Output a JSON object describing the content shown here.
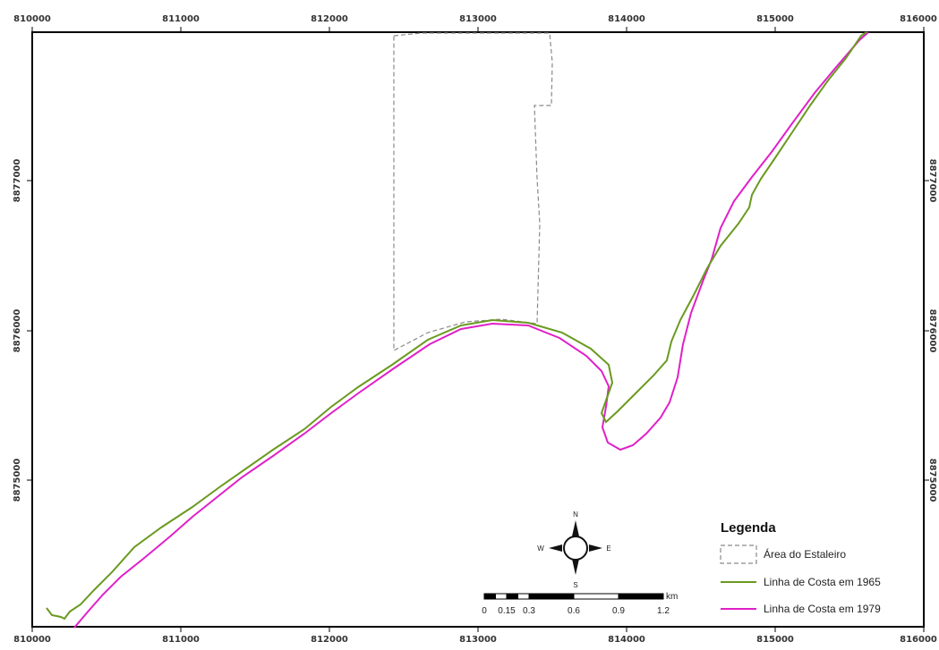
{
  "map": {
    "x_ticks": [
      "810000",
      "811000",
      "812000",
      "813000",
      "814000",
      "815000",
      "816000"
    ],
    "y_ticks": [
      "8877000",
      "8876000",
      "8875000"
    ],
    "x_range": [
      810000,
      816000
    ],
    "colors": {
      "frame": "#000000",
      "coast_1965": "#6a9a1f",
      "coast_1979": "#e020c8",
      "shipyard_outline": "#8a8a8a"
    }
  },
  "legend": {
    "title": "Legenda",
    "items": [
      {
        "label": "Área do Estaleiro",
        "symbol": "dashed-box"
      },
      {
        "label": "Linha de Costa em 1965",
        "symbol": "green-line"
      },
      {
        "label": "Linha de Costa em 1979",
        "symbol": "magenta-line"
      }
    ]
  },
  "compass": {
    "north": "N",
    "south": "S",
    "east": "E",
    "west": "W",
    "icon": "north-arrow-icon"
  },
  "scale_bar": {
    "unit": "km",
    "labels": [
      "0",
      "0.15",
      "0.3",
      "0.6",
      "0.9",
      "1.2"
    ],
    "segments": [
      0,
      0.075,
      0.15,
      0.225,
      0.3,
      0.6,
      0.9,
      1.2
    ]
  }
}
